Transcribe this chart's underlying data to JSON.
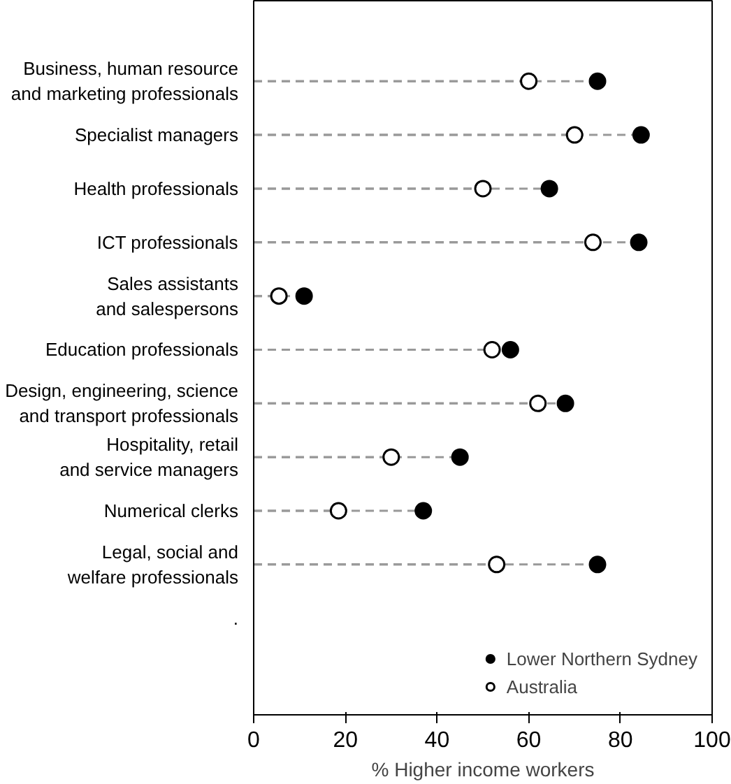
{
  "chart_data": {
    "type": "lollipop",
    "orientation": "horizontal",
    "xlabel": "% Higher income workers",
    "categories": [
      "Business, human resource\nand marketing professionals",
      "Specialist managers",
      "Health professionals",
      "ICT professionals",
      "Sales assistants\nand salespersons",
      "Education professionals",
      "Design, engineering, science\nand transport professionals",
      "Hospitality, retail\nand service managers",
      "Numerical clerks",
      "Legal, social and\nwelfare professionals",
      "."
    ],
    "series": [
      {
        "name": "Lower Northern Sydney",
        "color": "#000000",
        "values": [
          75,
          84.5,
          64.5,
          84,
          11,
          56,
          68,
          45,
          37,
          75,
          null
        ]
      },
      {
        "name": "Australia",
        "color": "#ffffff",
        "values": [
          60,
          70,
          50,
          74,
          5.5,
          52,
          62,
          30,
          18.5,
          53,
          null
        ]
      }
    ],
    "xlim": [
      0,
      100
    ],
    "xticks": [
      0,
      20,
      40,
      60,
      80,
      100
    ],
    "grid": false,
    "legend": "bottom right",
    "marker": "circle",
    "line_style": "dashed"
  }
}
